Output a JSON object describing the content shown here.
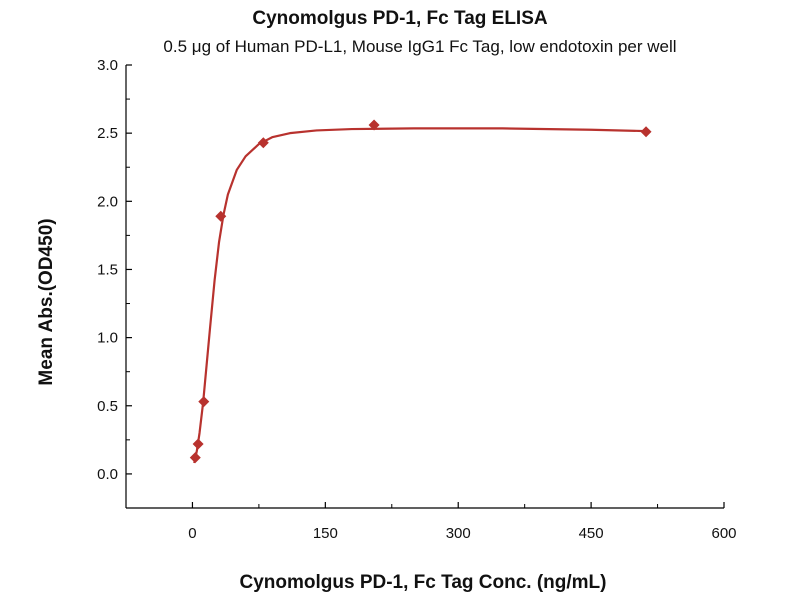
{
  "chart_data": {
    "type": "scatter",
    "title": "Cynomolgus PD-1, Fc Tag ELISA",
    "subtitle": "0.5 μg of Human PD-L1, Mouse IgG1 Fc Tag, low endotoxin per well",
    "xlabel": "Cynomolgus PD-1, Fc Tag Conc. (ng/mL)",
    "ylabel": "Mean Abs.(OD450)",
    "xlim": [
      -75,
      600
    ],
    "ylim": [
      -0.25,
      3.0
    ],
    "x_ticks": [
      0,
      150,
      300,
      450,
      600
    ],
    "x_tick_labels": [
      "0",
      "150",
      "300",
      "450",
      "600"
    ],
    "y_ticks": [
      0.0,
      0.5,
      1.0,
      1.5,
      2.0,
      2.5,
      3.0
    ],
    "y_tick_labels": [
      "0.0",
      "0.5",
      "1.0",
      "1.5",
      "2.0",
      "2.5",
      "3.0"
    ],
    "grid": false,
    "color": "#b8322e",
    "series": [
      {
        "marker": "diamond",
        "points": [
          {
            "x": 3.2,
            "y": 0.12
          },
          {
            "x": 6.4,
            "y": 0.22
          },
          {
            "x": 12.8,
            "y": 0.53
          },
          {
            "x": 32,
            "y": 1.89
          },
          {
            "x": 80,
            "y": 2.43
          },
          {
            "x": 205,
            "y": 2.56
          },
          {
            "x": 512,
            "y": 2.51
          }
        ]
      }
    ],
    "fit_curve": [
      {
        "x": 2,
        "y": 0.08
      },
      {
        "x": 5,
        "y": 0.17
      },
      {
        "x": 8,
        "y": 0.3
      },
      {
        "x": 12,
        "y": 0.52
      },
      {
        "x": 16,
        "y": 0.8
      },
      {
        "x": 20,
        "y": 1.08
      },
      {
        "x": 25,
        "y": 1.42
      },
      {
        "x": 30,
        "y": 1.7
      },
      {
        "x": 35,
        "y": 1.9
      },
      {
        "x": 40,
        "y": 2.05
      },
      {
        "x": 50,
        "y": 2.23
      },
      {
        "x": 60,
        "y": 2.33
      },
      {
        "x": 75,
        "y": 2.42
      },
      {
        "x": 90,
        "y": 2.47
      },
      {
        "x": 110,
        "y": 2.5
      },
      {
        "x": 140,
        "y": 2.52
      },
      {
        "x": 180,
        "y": 2.53
      },
      {
        "x": 250,
        "y": 2.535
      },
      {
        "x": 350,
        "y": 2.535
      },
      {
        "x": 450,
        "y": 2.525
      },
      {
        "x": 512,
        "y": 2.515
      }
    ]
  }
}
